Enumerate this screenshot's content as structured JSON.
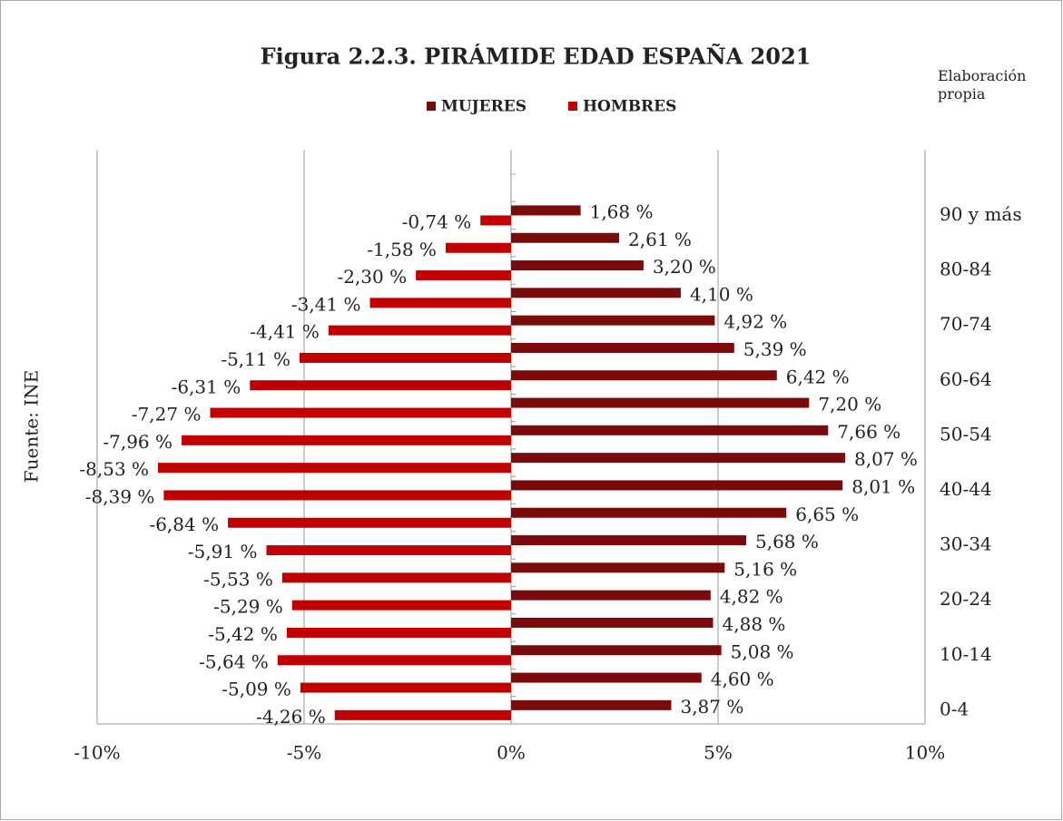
{
  "chart_data": {
    "type": "pyramid",
    "title": "Figura 2.2.3. PIRÁMIDE EDAD ESPAÑA 2021",
    "annotations": [
      "Elaboración propia",
      "Fuente: INE"
    ],
    "categories": [
      "0-4",
      null,
      "10-14",
      null,
      "20-24",
      null,
      "30-34",
      null,
      "40-44",
      null,
      "50-54",
      null,
      "60-64",
      null,
      "70-74",
      null,
      "80-84",
      null,
      "90 y más"
    ],
    "series": [
      {
        "name": "MUJERES",
        "color": "#7b0a0a",
        "values": [
          3.87,
          4.6,
          5.08,
          4.88,
          4.82,
          5.16,
          5.68,
          6.65,
          8.01,
          8.07,
          7.66,
          7.2,
          6.42,
          5.39,
          4.92,
          4.1,
          3.2,
          2.61,
          1.68
        ],
        "value_labels": [
          "3,87 %",
          "4,60 %",
          "5,08 %",
          "4,88 %",
          "4,82 %",
          "5,16 %",
          "5,68 %",
          "6,65 %",
          "8,01 %",
          "8,07 %",
          "7,66 %",
          "7,20 %",
          "6,42 %",
          "5,39 %",
          "4,92 %",
          "4,10 %",
          "3,20 %",
          "2,61 %",
          "1,68 %"
        ]
      },
      {
        "name": "HOMBRES",
        "color": "#c00000",
        "values": [
          -4.26,
          -5.09,
          -5.64,
          -5.42,
          -5.29,
          -5.53,
          -5.91,
          -6.84,
          -8.39,
          -8.53,
          -7.96,
          -7.27,
          -6.31,
          -5.11,
          -4.41,
          -3.41,
          -2.3,
          -1.58,
          -0.74
        ],
        "value_labels": [
          "-4,26 %",
          "-5,09 %",
          "-5,64 %",
          "-5,42 %",
          "-5,29 %",
          "-5,53 %",
          "-5,91 %",
          "-6,84 %",
          "-8,39 %",
          "-8,53 %",
          "-7,96 %",
          "-7,27 %",
          "-6,31 %",
          "-5,11 %",
          "-4,41 %",
          "-3,41 %",
          "-2,30 %",
          "-1,58 %",
          "-0,74 %"
        ]
      }
    ],
    "xlim": [
      -10,
      10
    ],
    "xticks": [
      {
        "value": -10,
        "label": "-10%"
      },
      {
        "value": -5,
        "label": "-5%"
      },
      {
        "value": 0,
        "label": "0%"
      },
      {
        "value": 5,
        "label": "5%"
      },
      {
        "value": 10,
        "label": "10%"
      }
    ],
    "grid": true,
    "legend": "top"
  }
}
